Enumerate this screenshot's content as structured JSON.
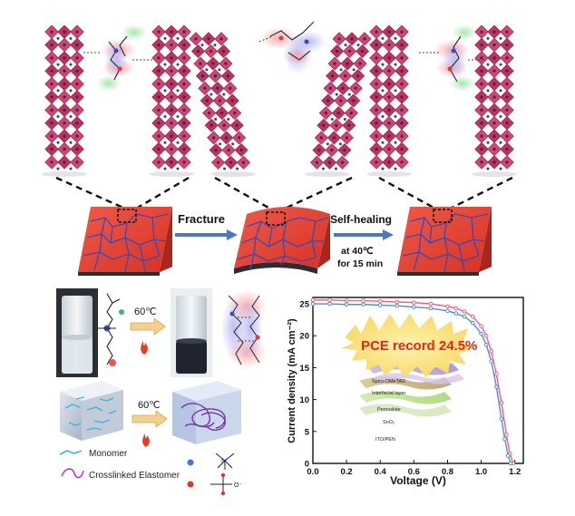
{
  "process": {
    "fracture_label": "Fracture",
    "healing_label": "Self-healing",
    "healing_temp": "at 40℃",
    "healing_time": "for 15 min"
  },
  "synthesis": {
    "temp_top": "60℃",
    "temp_bottom": "60℃"
  },
  "legend": {
    "monomer": "Monomer",
    "elastomer": "Crosslinked Elastomer",
    "cation_symbol": "N",
    "anion_symbol": "O⁻"
  },
  "device_stack": [
    "Ag",
    "Spiro-OMeTAD",
    "Interfacial layer",
    "Perovskite",
    "SnO₂",
    "ITO/PEN"
  ],
  "colors": {
    "perovskite_red": "#e23b2e",
    "grain_boundary": "#3a49b8",
    "arrow_blue": "#4a78c2",
    "curve_pink": "#f0607f",
    "curve_blue": "#4f8ed8",
    "badge_yellow": "#fbe07a",
    "badge_text": "#e8231a"
  },
  "chart_data": {
    "type": "line",
    "xlabel": "Voltage (V)",
    "ylabel": "Current density (mA cm⁻²)",
    "xlim": [
      0.0,
      1.25
    ],
    "ylim": [
      0,
      26
    ],
    "xticks": [
      "0.0",
      "0.2",
      "0.4",
      "0.6",
      "0.8",
      "1.0",
      "1.2"
    ],
    "yticks": [
      "0",
      "5",
      "10",
      "15",
      "20",
      "25"
    ],
    "annotation": "PCE record 24.5%",
    "series": [
      {
        "color": "#f0607f",
        "x": [
          0.0,
          0.1,
          0.2,
          0.3,
          0.4,
          0.5,
          0.6,
          0.7,
          0.8,
          0.85,
          0.9,
          0.95,
          1.0,
          1.03,
          1.06,
          1.09,
          1.12,
          1.15,
          1.17,
          1.19
        ],
        "y": [
          25.6,
          25.6,
          25.5,
          25.5,
          25.4,
          25.3,
          25.2,
          25.0,
          24.6,
          24.3,
          23.8,
          23.0,
          21.5,
          20.0,
          17.6,
          14.0,
          9.5,
          4.5,
          1.5,
          0
        ]
      },
      {
        "color": "#4f8ed8",
        "x": [
          0.0,
          0.1,
          0.2,
          0.3,
          0.4,
          0.5,
          0.6,
          0.7,
          0.8,
          0.85,
          0.9,
          0.95,
          1.0,
          1.03,
          1.06,
          1.09,
          1.12,
          1.14,
          1.16,
          1.175
        ],
        "y": [
          25.0,
          25.0,
          24.9,
          24.9,
          24.8,
          24.7,
          24.5,
          24.3,
          23.9,
          23.5,
          23.0,
          22.0,
          20.3,
          18.6,
          16.0,
          12.0,
          7.0,
          3.8,
          1.2,
          0
        ]
      }
    ]
  }
}
